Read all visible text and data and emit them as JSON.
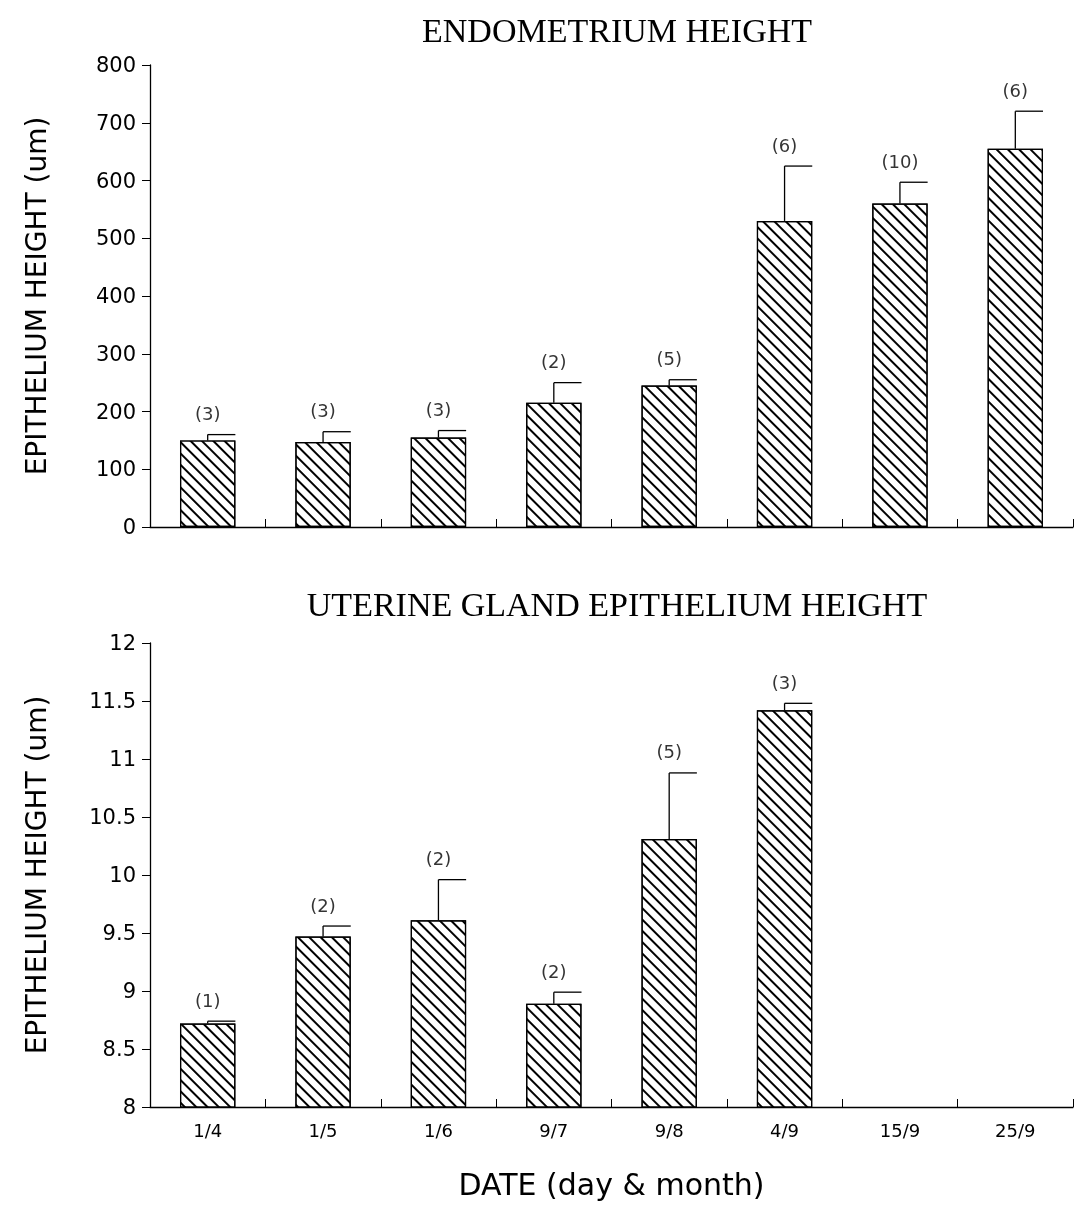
{
  "chart_data": [
    {
      "type": "bar",
      "title": "ENDOMETRIUM HEIGHT",
      "ylabel": "EPITHELIUM HEIGHT (um)",
      "categories": [
        "1/4",
        "1/5",
        "1/6",
        "9/7",
        "9/8",
        "4/9",
        "15/9",
        "25/9"
      ],
      "values": [
        150,
        147,
        155,
        215,
        245,
        530,
        560,
        655
      ],
      "errors": [
        [
          150,
          160
        ],
        [
          147,
          165
        ],
        [
          155,
          167
        ],
        [
          215,
          250
        ],
        [
          245,
          255
        ],
        [
          530,
          625
        ],
        [
          560,
          597
        ],
        [
          655,
          720
        ]
      ],
      "annotations": [
        {
          "text": "(3)",
          "x": "1/4",
          "y": 160
        },
        {
          "text": "(3)",
          "x": "1/5",
          "y": 165
        },
        {
          "text": "(3)",
          "x": "1/6",
          "y": 167
        },
        {
          "text": "(2)",
          "x": "9/7",
          "y": 250
        },
        {
          "text": "(5)",
          "x": "9/8",
          "y": 255
        },
        {
          "text": "(6)",
          "x": "4/9",
          "y": 625
        },
        {
          "text": "(10)",
          "x": "15/9",
          "y": 597
        },
        {
          "text": "(6)",
          "x": "25/9",
          "y": 720
        }
      ],
      "color": "#000000",
      "ylim": [
        0,
        800
      ],
      "yticks": [
        0,
        100,
        200,
        300,
        400,
        500,
        600,
        700,
        800
      ],
      "grid": false,
      "tick_labels": "y"
    },
    {
      "type": "bar",
      "title": "UTERINE GLAND EPITHELIUM HEIGHT",
      "ylabel": "EPITHELIUM HEIGHT (um)",
      "xlabel": "DATE (day & month)",
      "categories": [
        "1/4",
        "1/5",
        "1/6",
        "9/7",
        "9/8",
        "4/9",
        "15/9",
        "25/9"
      ],
      "values": [
        8.72,
        9.47,
        9.61,
        8.89,
        10.31,
        11.42,
        null,
        null
      ],
      "errors": [
        [
          8.72,
          8.74
        ],
        [
          9.47,
          9.56
        ],
        [
          9.61,
          9.96
        ],
        [
          8.89,
          8.99
        ],
        [
          10.31,
          10.88
        ],
        [
          11.42,
          11.48
        ],
        null,
        null
      ],
      "annotations": [
        {
          "text": "(1)",
          "x": "1/4",
          "y": 8.74
        },
        {
          "text": "(2)",
          "x": "1/5",
          "y": 9.56
        },
        {
          "text": "(2)",
          "x": "1/6",
          "y": 9.96
        },
        {
          "text": "(2)",
          "x": "9/7",
          "y": 8.99
        },
        {
          "text": "(5)",
          "x": "9/8",
          "y": 10.88
        },
        {
          "text": "(3)",
          "x": "4/9",
          "y": 11.48
        }
      ],
      "color": "#000000",
      "ylim": [
        8,
        12
      ],
      "yticks": [
        8,
        8.5,
        9,
        9.5,
        10,
        10.5,
        11,
        11.5,
        12
      ],
      "grid": false
    }
  ]
}
